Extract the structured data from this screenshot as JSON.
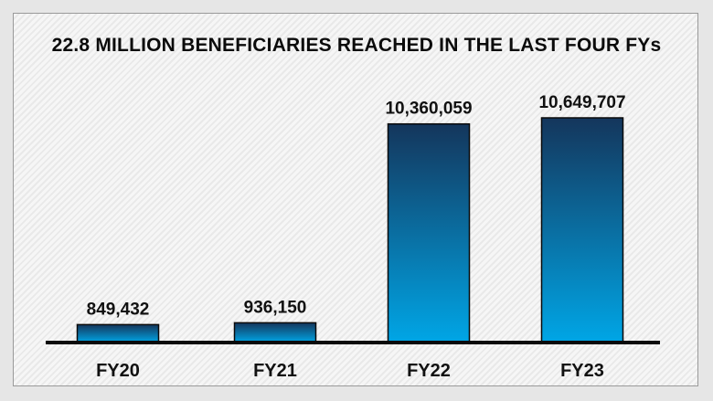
{
  "chart_data": {
    "type": "bar",
    "title": "22.8 MILLION BENEFICIARIES REACHED IN THE LAST FOUR FYs",
    "categories": [
      "FY20",
      "FY21",
      "FY22",
      "FY23"
    ],
    "values": [
      849432,
      936150,
      10360059,
      10649707
    ],
    "value_labels": [
      "849,432",
      "936,150",
      "10,360,059",
      "10,649,707"
    ],
    "xlabel": "",
    "ylabel": "",
    "ylim": [
      0,
      11000000
    ],
    "grid": false,
    "legend": "none"
  },
  "colors": {
    "bar_top": "#14365c",
    "bar_bottom": "#00a6e6",
    "bar_border": "#0a0a0a",
    "axis": "#0a0a0a"
  }
}
